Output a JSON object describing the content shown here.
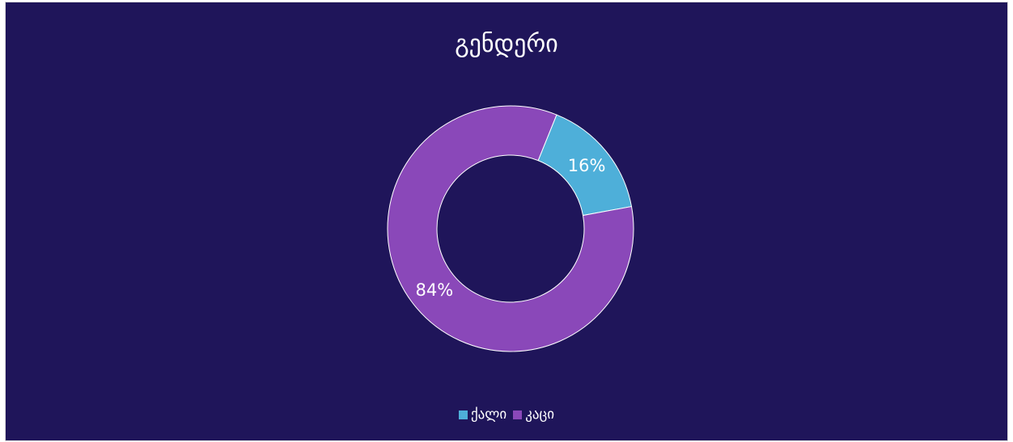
{
  "chart_data": {
    "type": "pie",
    "title": "გენდერი",
    "categories": [
      "ქალი",
      "კაცი"
    ],
    "values": [
      16,
      84
    ],
    "value_labels": [
      "16%",
      "84%"
    ],
    "colors": [
      "#4eafd9",
      "#8a48b9"
    ],
    "donut": true,
    "legend_position": "bottom"
  },
  "colors": {
    "background": "#1f155a",
    "text": "#ffffff"
  }
}
